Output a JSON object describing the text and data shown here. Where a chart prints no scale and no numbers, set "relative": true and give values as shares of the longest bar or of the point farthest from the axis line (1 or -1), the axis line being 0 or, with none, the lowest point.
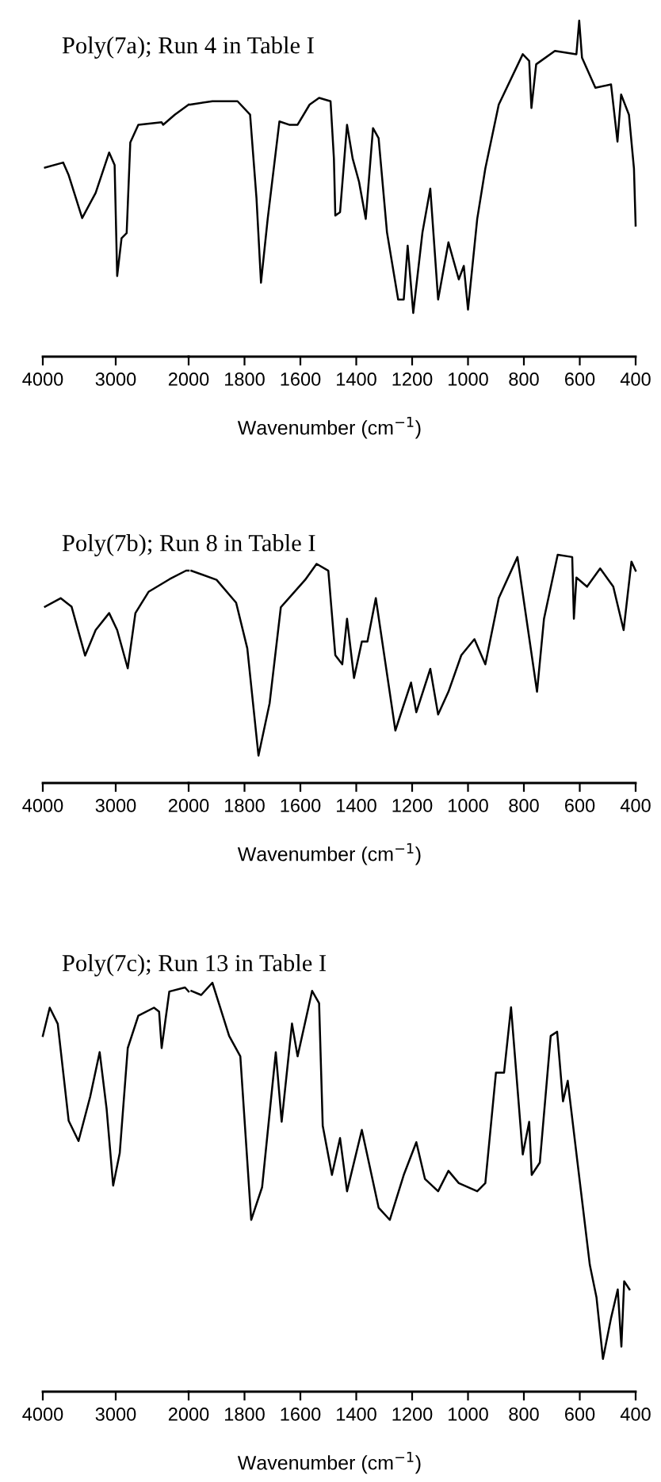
{
  "chart_data": [
    {
      "type": "line",
      "title": "Poly(7a); Run 4 in Table I",
      "relative": true,
      "color": "#000000",
      "tick_labels": "x",
      "xlim": [
        4000,
        2000
      ],
      "xticks": [
        4000,
        3000
      ],
      "x": [
        3970,
        3720,
        3645,
        3460,
        3275,
        3090,
        3015,
        2980,
        2920,
        2850,
        2800,
        2690,
        2370,
        2350,
        2190,
        2000
      ],
      "values": [
        0.75,
        0.77,
        0.72,
        0.55,
        0.65,
        0.81,
        0.76,
        0.32,
        0.47,
        0.49,
        0.85,
        0.92,
        0.93,
        0.92,
        0.96,
        1.0
      ]
    },
    {
      "type": "line",
      "xlabel": "Wavenumber (cm$^{−1}$)",
      "relative": true,
      "color": "#000000",
      "tick_labels": "x",
      "xlim": [
        2000,
        400
      ],
      "xticks": [
        2000,
        1800,
        1600,
        1400,
        1200,
        1000,
        800,
        600,
        400
      ],
      "x": [
        1995,
        1915,
        1825,
        1780,
        1757,
        1741,
        1717,
        1675,
        1640,
        1610,
        1567,
        1533,
        1492,
        1480,
        1475,
        1458,
        1433,
        1413,
        1390,
        1366,
        1340,
        1320,
        1290,
        1250,
        1230,
        1216,
        1196,
        1163,
        1135,
        1107,
        1070,
        1033,
        1015,
        1000,
        967,
        938,
        890,
        804,
        781,
        773,
        756,
        689,
        612,
        602,
        592,
        544,
        488,
        465,
        452,
        424,
        406,
        400
      ],
      "values": [
        0.75,
        0.76,
        0.76,
        0.72,
        0.47,
        0.22,
        0.41,
        0.7,
        0.69,
        0.69,
        0.75,
        0.77,
        0.76,
        0.59,
        0.42,
        0.43,
        0.69,
        0.59,
        0.52,
        0.41,
        0.68,
        0.65,
        0.37,
        0.17,
        0.17,
        0.33,
        0.13,
        0.37,
        0.5,
        0.17,
        0.34,
        0.23,
        0.27,
        0.14,
        0.41,
        0.56,
        0.75,
        0.9,
        0.88,
        0.74,
        0.87,
        0.91,
        0.9,
        1.0,
        0.89,
        0.8,
        0.81,
        0.64,
        0.78,
        0.72,
        0.56,
        0.39
      ]
    },
    {
      "type": "line",
      "title": "Poly(7b); Run 8 in Table I",
      "relative": true,
      "color": "#000000",
      "tick_labels": "x",
      "xlim": [
        4000,
        2000
      ],
      "xticks": [
        4000,
        3000
      ],
      "x": [
        3970,
        3755,
        3605,
        3420,
        3275,
        3090,
        2980,
        2835,
        2730,
        2550,
        2260,
        2035,
        2000
      ],
      "values": [
        0.83,
        0.87,
        0.83,
        0.6,
        0.72,
        0.8,
        0.72,
        0.54,
        0.8,
        0.9,
        0.96,
        1.0,
        1.0
      ]
    },
    {
      "type": "line",
      "xlabel": "Wavenumber (cm$^{−1}$)",
      "relative": true,
      "color": "#000000",
      "tick_labels": "x",
      "xlim": [
        2000,
        400
      ],
      "xticks": [
        2000,
        1800,
        1600,
        1400,
        1200,
        1000,
        800,
        600,
        400
      ],
      "x": [
        1990,
        1900,
        1830,
        1790,
        1750,
        1710,
        1670,
        1583,
        1542,
        1500,
        1475,
        1450,
        1433,
        1408,
        1380,
        1360,
        1330,
        1260,
        1204,
        1185,
        1135,
        1107,
        1070,
        1024,
        977,
        938,
        890,
        823,
        785,
        753,
        728,
        679,
        627,
        621,
        612,
        574,
        527,
        480,
        443,
        415,
        400
      ],
      "values": [
        0.93,
        0.89,
        0.79,
        0.59,
        0.12,
        0.35,
        0.77,
        0.89,
        0.96,
        0.93,
        0.56,
        0.52,
        0.72,
        0.46,
        0.62,
        0.62,
        0.81,
        0.23,
        0.44,
        0.31,
        0.5,
        0.3,
        0.4,
        0.56,
        0.63,
        0.52,
        0.81,
        0.99,
        0.67,
        0.4,
        0.72,
        1.0,
        0.99,
        0.72,
        0.9,
        0.86,
        0.94,
        0.86,
        0.67,
        0.97,
        0.93
      ]
    },
    {
      "type": "line",
      "title": "Poly(7c); Run 13 in Table I",
      "relative": true,
      "color": "#000000",
      "tick_labels": "x",
      "xlim": [
        4000,
        2000
      ],
      "xticks": [
        4000,
        3000
      ],
      "x": [
        4000,
        3905,
        3795,
        3645,
        3510,
        3350,
        3220,
        3125,
        3035,
        2945,
        2835,
        2690,
        2475,
        2405,
        2370,
        2265,
        2050,
        2000
      ],
      "values": [
        0.88,
        0.95,
        0.91,
        0.67,
        0.62,
        0.73,
        0.84,
        0.7,
        0.51,
        0.59,
        0.85,
        0.93,
        0.95,
        0.94,
        0.85,
        0.99,
        1.0,
        0.99
      ]
    },
    {
      "type": "line",
      "xlabel": "Wavenumber (cm$^{−1}$)",
      "relative": true,
      "color": "#000000",
      "tick_labels": "x",
      "xlim": [
        2000,
        400
      ],
      "xticks": [
        2000,
        1800,
        1600,
        1400,
        1200,
        1000,
        800,
        600,
        400
      ],
      "x": [
        1990,
        1955,
        1915,
        1855,
        1815,
        1776,
        1737,
        1688,
        1667,
        1630,
        1610,
        1558,
        1533,
        1520,
        1487,
        1458,
        1433,
        1380,
        1320,
        1280,
        1230,
        1185,
        1154,
        1107,
        1070,
        1033,
        967,
        938,
        900,
        871,
        846,
        804,
        781,
        772,
        743,
        704,
        681,
        660,
        643,
        608,
        564,
        540,
        517,
        488,
        464,
        451,
        441,
        422
      ],
      "values": [
        0.98,
        0.97,
        1.0,
        0.87,
        0.82,
        0.42,
        0.5,
        0.83,
        0.66,
        0.9,
        0.82,
        0.98,
        0.95,
        0.65,
        0.53,
        0.62,
        0.49,
        0.64,
        0.45,
        0.42,
        0.53,
        0.61,
        0.52,
        0.49,
        0.54,
        0.51,
        0.49,
        0.51,
        0.78,
        0.78,
        0.94,
        0.58,
        0.66,
        0.53,
        0.56,
        0.87,
        0.88,
        0.71,
        0.76,
        0.56,
        0.31,
        0.23,
        0.08,
        0.18,
        0.25,
        0.11,
        0.27,
        0.25
      ]
    }
  ]
}
